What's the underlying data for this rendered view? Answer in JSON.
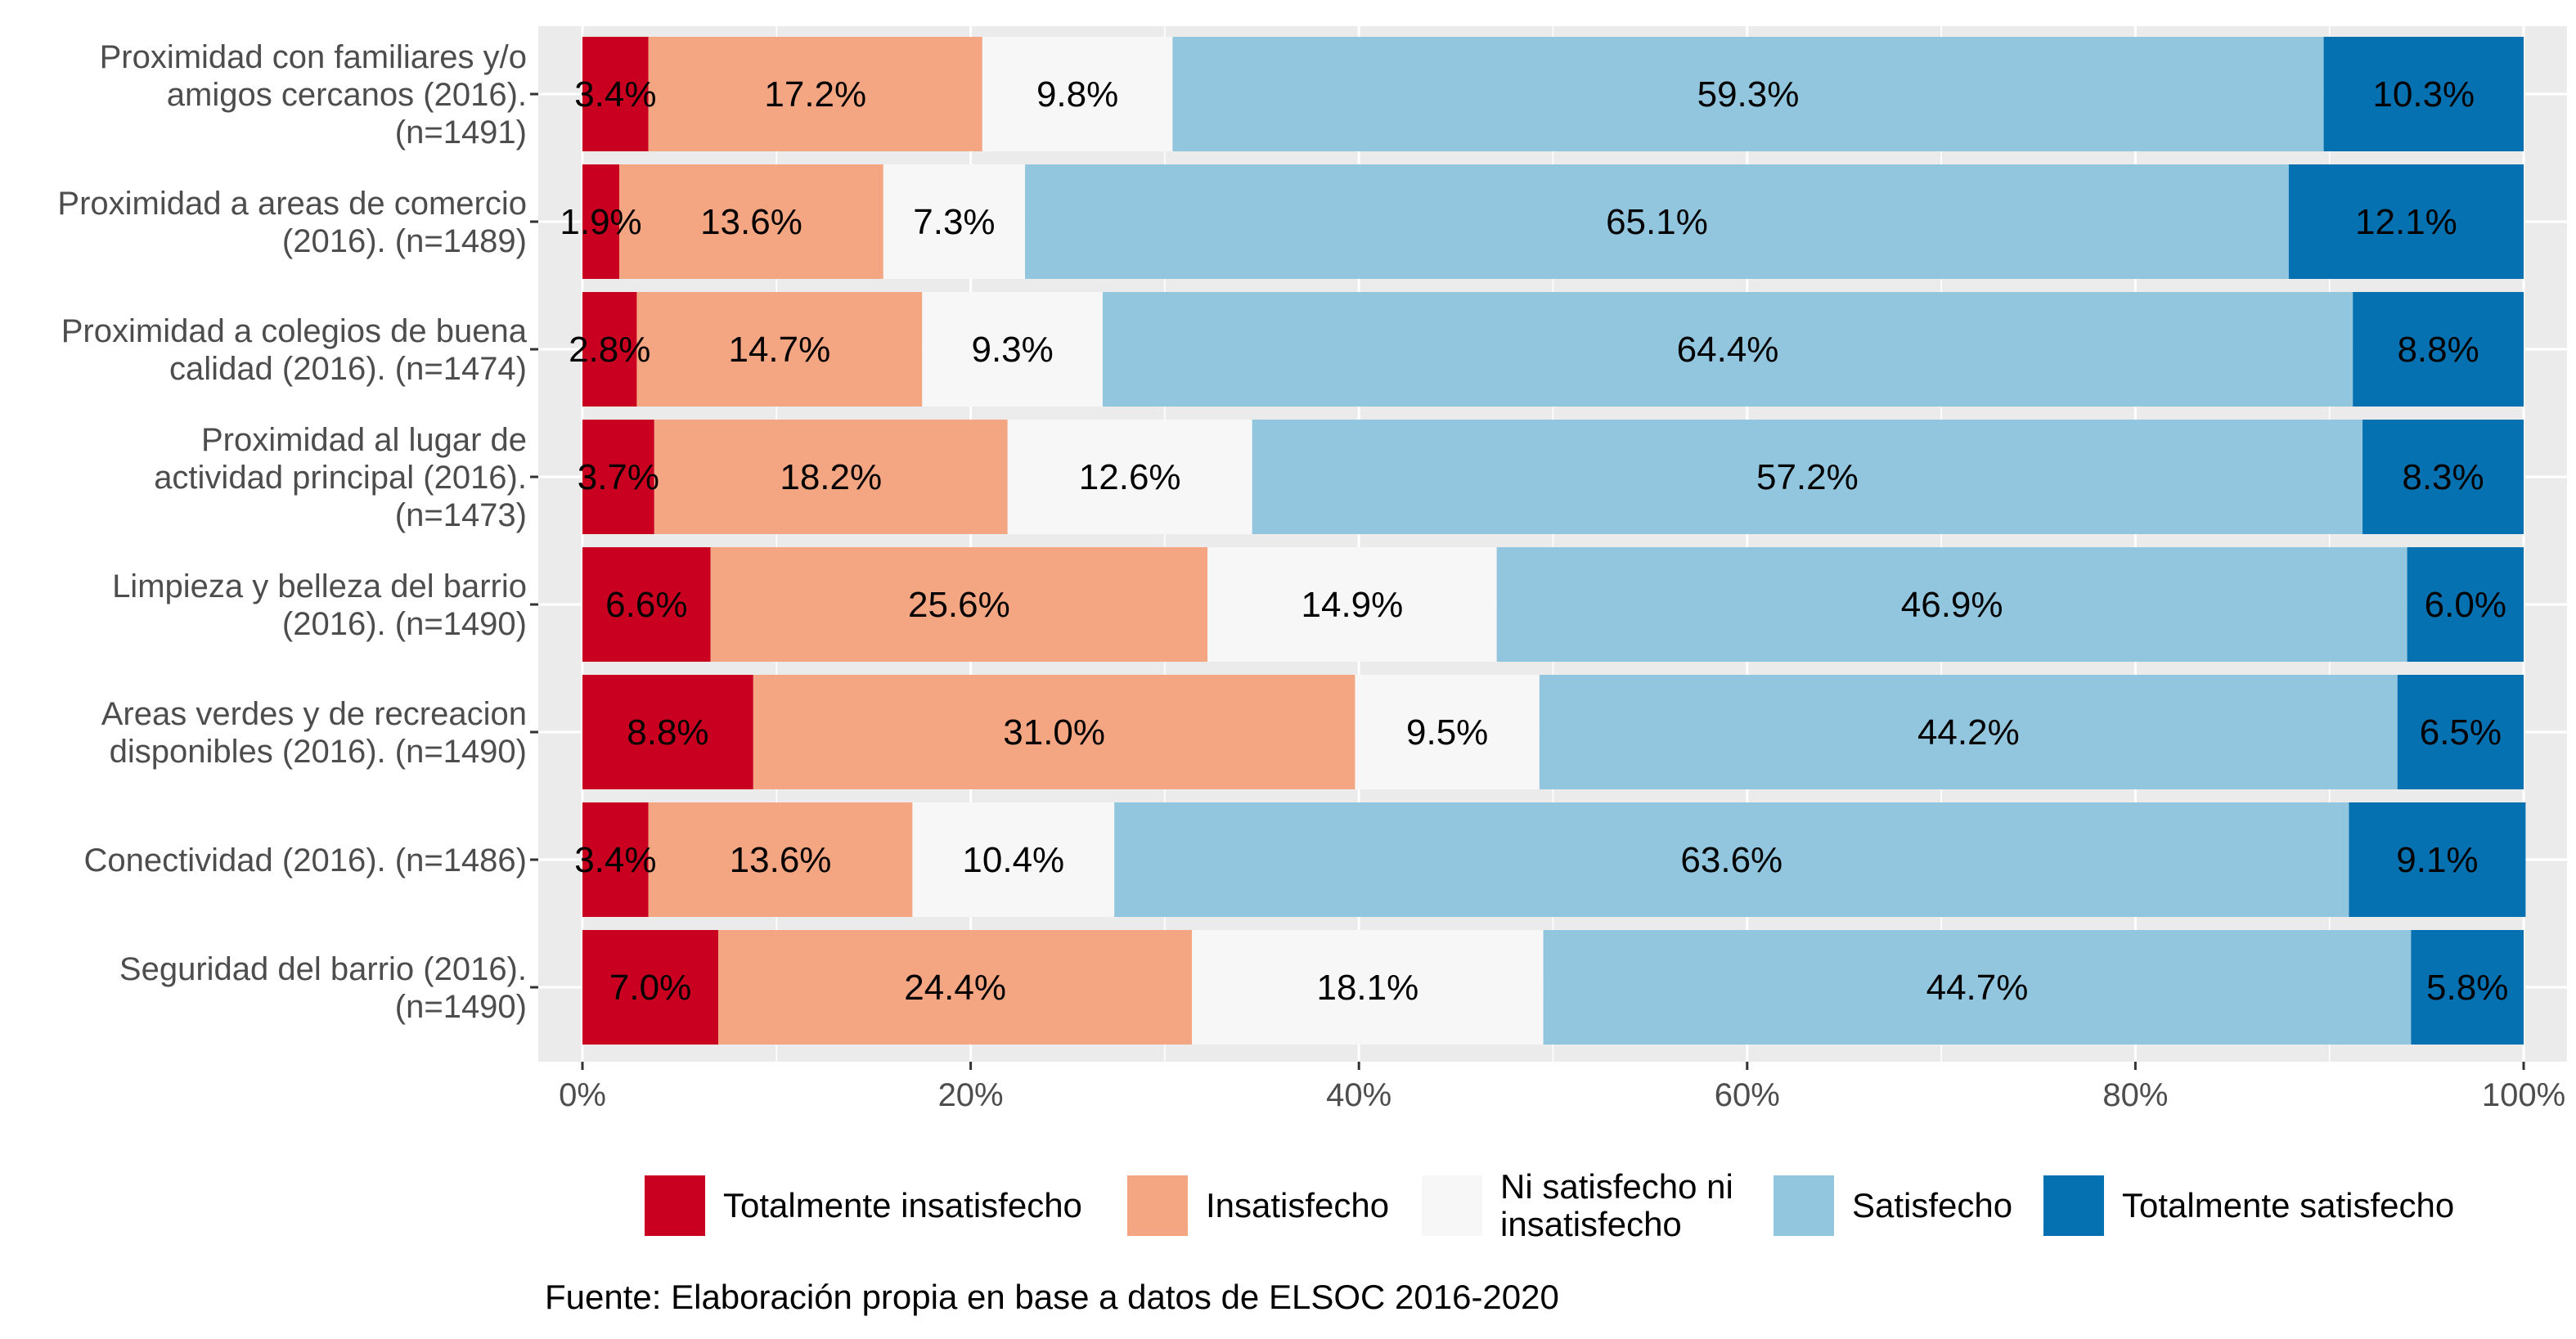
{
  "chart_data": {
    "type": "bar",
    "orientation": "horizontal",
    "stacked": true,
    "normalized": true,
    "categories": [
      [
        "Proximidad con familiares y/o",
        "amigos cercanos (2016).",
        "(n=1491)"
      ],
      [
        "Proximidad a areas de comercio",
        "(2016). (n=1489)"
      ],
      [
        "Proximidad a colegios de buena",
        "calidad (2016). (n=1474)"
      ],
      [
        "Proximidad al lugar de",
        "actividad principal (2016).",
        "(n=1473)"
      ],
      [
        "Limpieza y belleza del barrio",
        "(2016). (n=1490)"
      ],
      [
        "Areas verdes y de recreacion",
        "disponibles (2016). (n=1490)"
      ],
      [
        "Conectividad (2016). (n=1486)"
      ],
      [
        "Seguridad del barrio (2016).",
        "(n=1490)"
      ]
    ],
    "series": [
      {
        "name": "Totalmente insatisfecho",
        "color": "#ca0020",
        "values": [
          3.4,
          1.9,
          2.8,
          3.7,
          6.6,
          8.8,
          3.4,
          7.0
        ],
        "labels": [
          "3.4%",
          "1.9%",
          "2.8%",
          "3.7%",
          "6.6%",
          "8.8%",
          "3.4%",
          "7.0%"
        ]
      },
      {
        "name": "Insatisfecho",
        "color": "#f4a582",
        "values": [
          17.2,
          13.6,
          14.7,
          18.2,
          25.6,
          31.0,
          13.6,
          24.4
        ],
        "labels": [
          "17.2%",
          "13.6%",
          "14.7%",
          "18.2%",
          "25.6%",
          "31.0%",
          "13.6%",
          "24.4%"
        ]
      },
      {
        "name": "Ni satisfecho ni\ninsatisfecho",
        "color": "#f7f7f7",
        "values": [
          9.8,
          7.3,
          9.3,
          12.6,
          14.9,
          9.5,
          10.4,
          18.1
        ],
        "labels": [
          "9.8%",
          "7.3%",
          "9.3%",
          "12.6%",
          "14.9%",
          "9.5%",
          "10.4%",
          "18.1%"
        ]
      },
      {
        "name": "Satisfecho",
        "color": "#92c5de",
        "values": [
          59.3,
          65.1,
          64.4,
          57.2,
          46.9,
          44.2,
          63.6,
          44.7
        ],
        "labels": [
          "59.3%",
          "65.1%",
          "64.4%",
          "57.2%",
          "46.9%",
          "44.2%",
          "63.6%",
          "44.7%"
        ]
      },
      {
        "name": "Totalmente satisfecho",
        "color": "#0571b0",
        "values": [
          10.3,
          12.1,
          8.8,
          8.3,
          6.0,
          6.5,
          9.1,
          5.8
        ],
        "labels": [
          "10.3%",
          "12.1%",
          "8.8%",
          "8.3%",
          "6.0%",
          "6.5%",
          "9.1%",
          "5.8%"
        ]
      }
    ],
    "x_ticks": [
      "0%",
      "20%",
      "40%",
      "60%",
      "80%",
      "100%"
    ],
    "xlim": [
      0,
      100
    ],
    "grid": true,
    "panel_background": "#ebebeb",
    "legend_position": "bottom",
    "caption": "Fuente: Elaboración propia en base a datos de ELSOC 2016-2020"
  }
}
